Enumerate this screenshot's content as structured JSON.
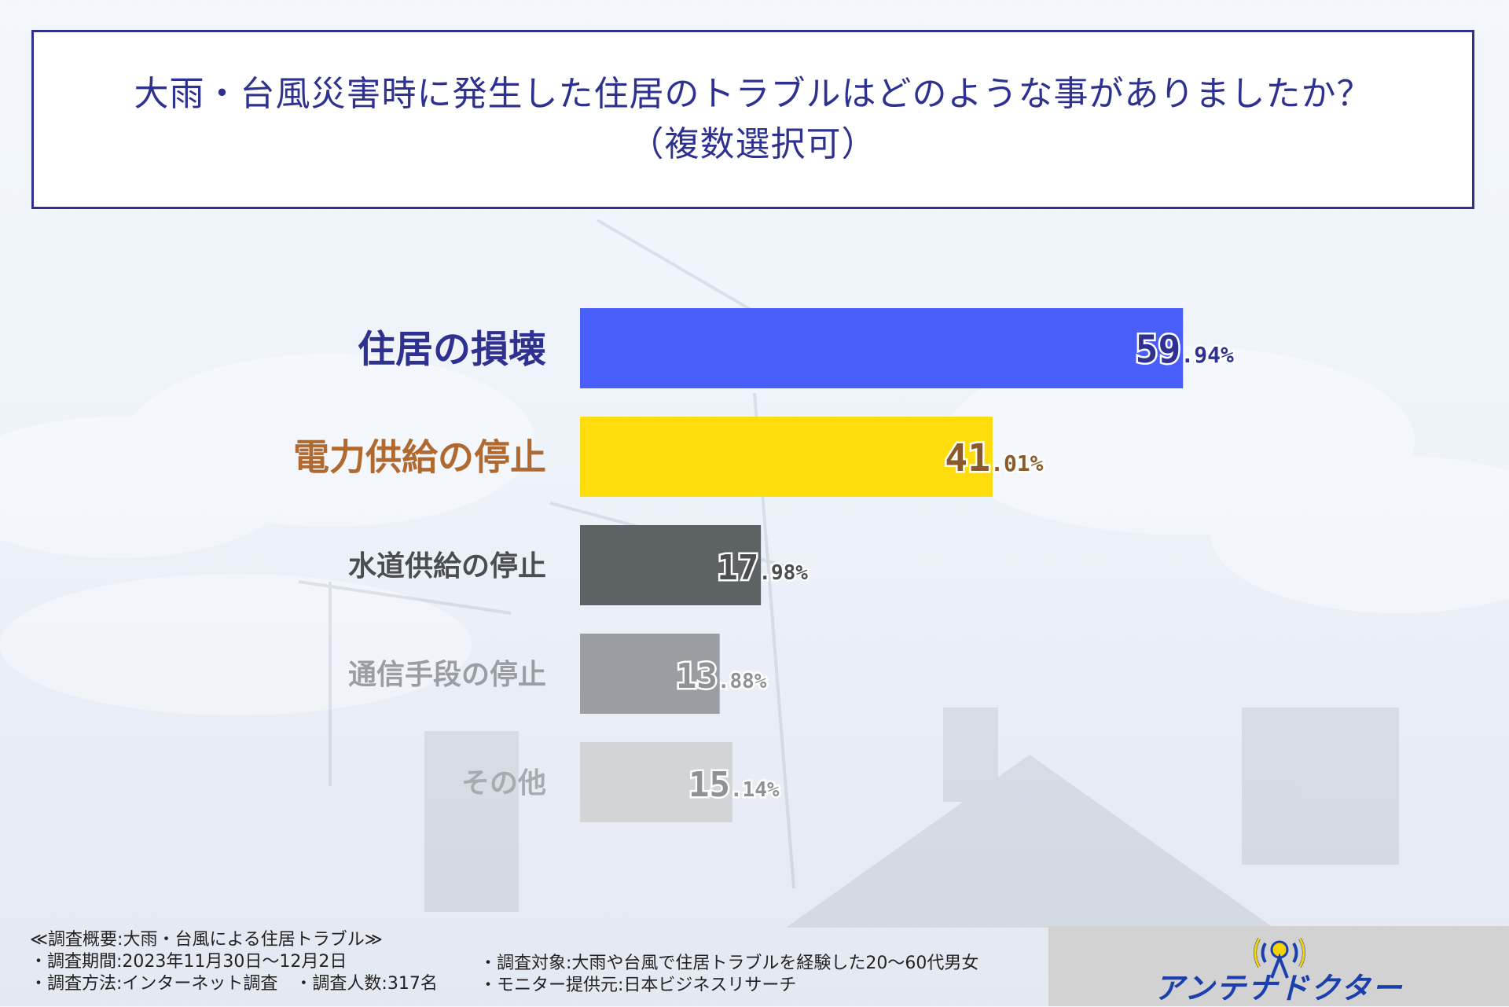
{
  "title": {
    "line1": "大雨・台風災害時に発生した住居のトラブルはどのような事がありましたか？",
    "line2": "（複数選択可）"
  },
  "chart_data": {
    "type": "bar",
    "orientation": "horizontal",
    "unit": "%",
    "xlim": [
      0,
      100
    ],
    "categories": [
      "住居の損壊",
      "電力供給の停止",
      "水道供給の停止",
      "通信手段の停止",
      "その他"
    ],
    "values": [
      59.94,
      41.01,
      17.98,
      13.88,
      15.14
    ],
    "bar_colors": [
      "#4a5ef9",
      "#ffdd0d",
      "#5d6265",
      "#9a9ea2",
      "#d2d4d7"
    ],
    "label_colors": [
      "#2e3190",
      "#b06a30",
      "#4a4e52",
      "#9a9ea2",
      "#a8abae"
    ],
    "value_colors": [
      "#2e3190",
      "#8a5a2a",
      "#4a4e52",
      "#8e9296",
      "#8e9296"
    ]
  },
  "footer": {
    "summary": "≪調査概要:大雨・台風による住居トラブル≫",
    "period": "・調査期間:2023年11月30日〜12月2日",
    "method": "・調査方法:インターネット調査　・調査人数:317名",
    "target": "・調査対象:大雨や台風で住居トラブルを経験した20〜60代男女",
    "provider": "・モニター提供元:日本ビジネスリサーチ"
  },
  "logo": {
    "text": "アンテナドクター"
  }
}
